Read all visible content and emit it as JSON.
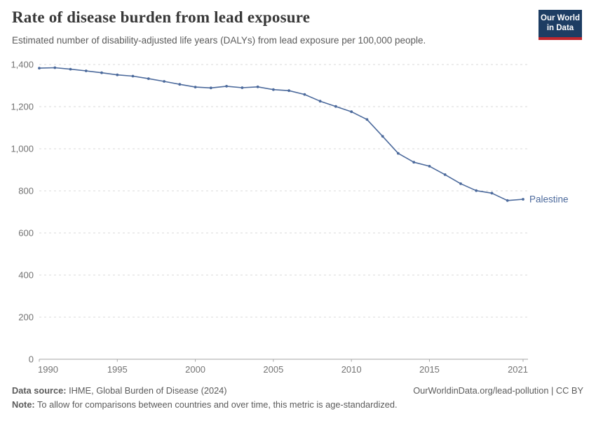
{
  "header": {
    "title": "Rate of disease burden from lead exposure",
    "subtitle": "Estimated number of disability-adjusted life years (DALYs) from lead exposure per 100,000 people.",
    "logo": {
      "line1": "Our World",
      "line2": "in Data",
      "bg_color": "#1d3d63",
      "accent_color": "#c0272d"
    }
  },
  "footer": {
    "source_label": "Data source:",
    "source_text": " IHME, Global Burden of Disease (2024)",
    "url_text": "OurWorldinData.org/lead-pollution | CC BY",
    "note_label": "Note:",
    "note_text": " To allow for comparisons between countries and over time, this metric is age-standardized."
  },
  "chart_data": {
    "type": "line",
    "title": "Rate of disease burden from lead exposure",
    "subtitle": "Estimated number of disability-adjusted life years (DALYs) from lead exposure per 100,000 people.",
    "x": [
      1990,
      1991,
      1992,
      1993,
      1994,
      1995,
      1996,
      1997,
      1998,
      1999,
      2000,
      2001,
      2002,
      2003,
      2004,
      2005,
      2006,
      2007,
      2008,
      2009,
      2010,
      2011,
      2012,
      2013,
      2014,
      2015,
      2016,
      2017,
      2018,
      2019,
      2020,
      2021
    ],
    "series": [
      {
        "name": "Palestine",
        "color": "#4c6a9c",
        "values": [
          1383,
          1385,
          1378,
          1370,
          1361,
          1351,
          1345,
          1333,
          1320,
          1306,
          1293,
          1289,
          1297,
          1290,
          1294,
          1281,
          1276,
          1258,
          1226,
          1201,
          1176,
          1139,
          1059,
          978,
          936,
          917,
          877,
          834,
          801,
          789,
          754,
          760
        ]
      }
    ],
    "xticks": [
      1990,
      1995,
      2000,
      2005,
      2010,
      2015,
      2021
    ],
    "yticks": [
      0,
      200,
      400,
      600,
      800,
      1000,
      1200,
      1400
    ],
    "xlim": [
      1990,
      2021
    ],
    "ylim": [
      0,
      1400
    ],
    "xlabel": "",
    "ylabel": "",
    "grid": "horizontal-dashed",
    "legend_position": "line-end-label",
    "colors": {
      "gridline": "#dadada",
      "axis": "#a5a5a5",
      "tick_label": "#737373"
    }
  }
}
